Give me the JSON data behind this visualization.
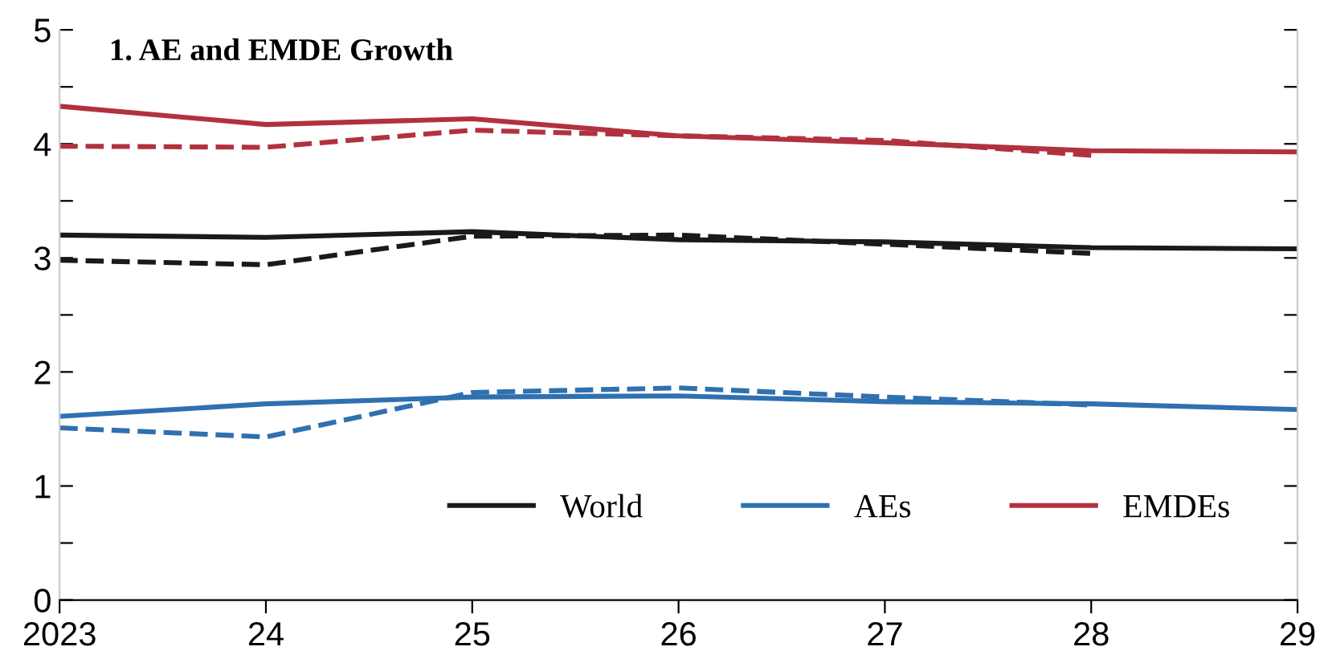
{
  "chart_data": {
    "type": "line",
    "title": "1. AE and EMDE Growth",
    "categories": [
      "2023",
      "24",
      "25",
      "26",
      "27",
      "28",
      "29"
    ],
    "series": [
      {
        "name": "World",
        "color": "#1a1a1a",
        "line_style": "solid",
        "values": [
          3.2,
          3.18,
          3.23,
          3.16,
          3.14,
          3.09,
          3.08
        ]
      },
      {
        "name": "AEs",
        "color": "#2f70b0",
        "line_style": "solid",
        "values": [
          1.61,
          1.72,
          1.78,
          1.79,
          1.74,
          1.72,
          1.67
        ]
      },
      {
        "name": "EMDEs",
        "color": "#b2313f",
        "line_style": "solid",
        "values": [
          4.33,
          4.17,
          4.22,
          4.07,
          4.01,
          3.94,
          3.93
        ]
      },
      {
        "color": "#1a1a1a",
        "line_style": "dashed",
        "values": [
          2.98,
          2.94,
          3.19,
          3.2,
          3.12,
          3.04,
          null
        ]
      },
      {
        "color": "#2f70b0",
        "line_style": "dashed",
        "values": [
          1.51,
          1.43,
          1.82,
          1.86,
          1.78,
          1.71,
          null
        ]
      },
      {
        "color": "#b2313f",
        "line_style": "dashed",
        "values": [
          3.98,
          3.97,
          4.12,
          4.07,
          4.03,
          3.9,
          null
        ]
      }
    ],
    "ylim": [
      0,
      5
    ],
    "yticks": [
      0,
      {
        "value": 0.5,
        "label": null
      },
      1,
      {
        "value": 1.5,
        "label": null
      },
      2,
      {
        "value": 2.5,
        "label": null
      },
      3,
      {
        "value": 3.5,
        "label": null
      },
      4,
      {
        "value": 4.5,
        "label": null
      },
      5
    ],
    "grid": false,
    "legend": "bottom right",
    "marker": "none"
  }
}
